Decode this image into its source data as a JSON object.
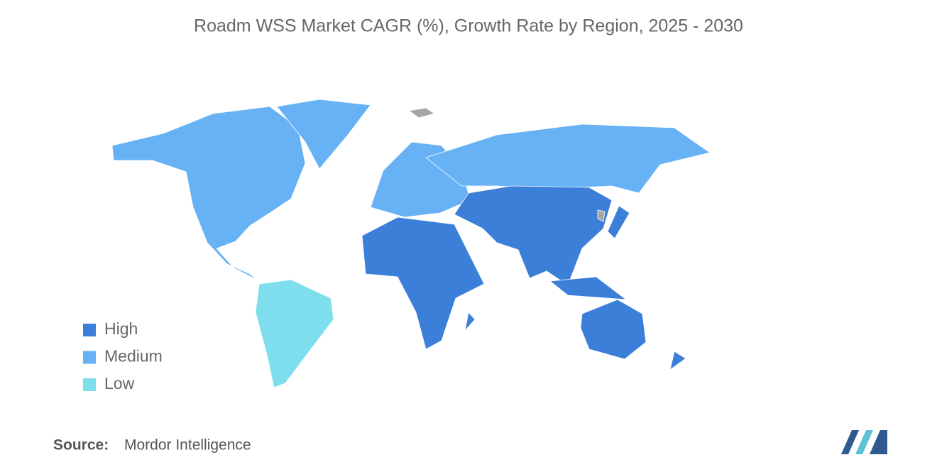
{
  "title": "Roadm WSS Market CAGR (%), Growth Rate by Region, 2025 - 2030",
  "legend": [
    {
      "label": "High",
      "color": "#3b7fd8"
    },
    {
      "label": "Medium",
      "color": "#66b2f4"
    },
    {
      "label": "Low",
      "color": "#7fdeee"
    }
  ],
  "no_data_color": "#a6a6a6",
  "source": {
    "label": "Source:",
    "name": "Mordor Intelligence"
  }
}
